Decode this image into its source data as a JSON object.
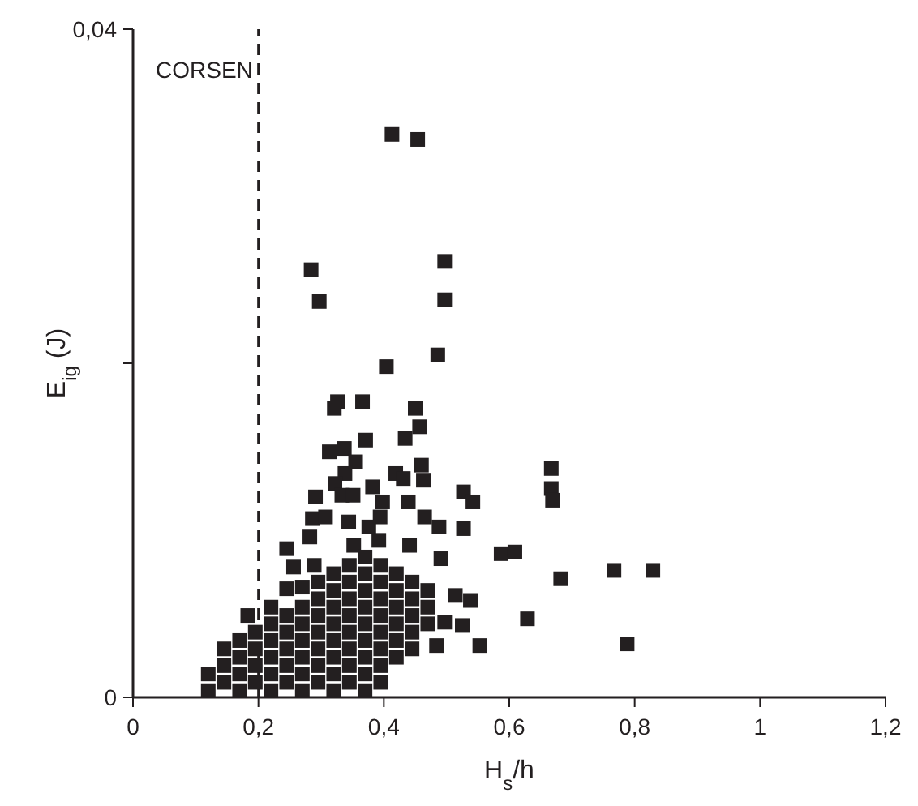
{
  "chart_data": {
    "type": "scatter",
    "xlabel": "H$_{s}$/h",
    "ylabel": "E$_{ig}$ (J)",
    "annotations": [
      "CORSEN"
    ],
    "xlim": [
      0,
      1.2
    ],
    "ylim": [
      0,
      0.04
    ],
    "xticks": [
      {
        "value": 0,
        "label": "0"
      },
      {
        "value": 0.2,
        "label": "0,2"
      },
      {
        "value": 0.4,
        "label": "0,4"
      },
      {
        "value": 0.6,
        "label": "0,6"
      },
      {
        "value": 0.8,
        "label": "0,8"
      },
      {
        "value": 1,
        "label": "1"
      },
      {
        "value": 1.2,
        "label": "1,2"
      }
    ],
    "yticks": [
      {
        "value": 0,
        "label": "0"
      },
      {
        "value": 0.02,
        "label": null
      },
      {
        "value": 0.04,
        "label": "0,04"
      }
    ],
    "grid": false,
    "marker": "square",
    "ref_lines": [
      {
        "axis": "x",
        "value": 0.2,
        "line_style": "dashed",
        "color": "#231f20"
      }
    ],
    "series": [
      {
        "color": "#231f20",
        "x": [
          0.413,
          0.454,
          0.284,
          0.297,
          0.497,
          0.497,
          0.486,
          0.404,
          0.326,
          0.321,
          0.366,
          0.45,
          0.457,
          0.434,
          0.371,
          0.313,
          0.337,
          0.355,
          0.338,
          0.322,
          0.46,
          0.419,
          0.431,
          0.463,
          0.382,
          0.291,
          0.333,
          0.351,
          0.527,
          0.542,
          0.398,
          0.439,
          0.286,
          0.307,
          0.344,
          0.394,
          0.465,
          0.667,
          0.667,
          0.669,
          0.527,
          0.587,
          0.609,
          0.682,
          0.767,
          0.829,
          0.629,
          0.788,
          0.488,
          0.282,
          0.376,
          0.392,
          0.441,
          0.245,
          0.256,
          0.289,
          0.491,
          0.352,
          0.245,
          0.183,
          0.553,
          0.525,
          0.538,
          0.514,
          0.497,
          0.445,
          0.484
        ],
        "values": [
          0.0337,
          0.0334,
          0.0256,
          0.0237,
          0.0261,
          0.0238,
          0.0205,
          0.0198,
          0.0177,
          0.0173,
          0.0177,
          0.0173,
          0.0162,
          0.0155,
          0.0154,
          0.0147,
          0.0149,
          0.0141,
          0.0134,
          0.0128,
          0.0139,
          0.0134,
          0.0131,
          0.013,
          0.0126,
          0.012,
          0.0121,
          0.0121,
          0.0123,
          0.0117,
          0.0117,
          0.0117,
          0.0107,
          0.0108,
          0.0105,
          0.0108,
          0.0108,
          0.0137,
          0.0125,
          0.0118,
          0.0101,
          0.0086,
          0.0087,
          0.0071,
          0.0076,
          0.0076,
          0.0047,
          0.0032,
          0.0102,
          0.0096,
          0.0102,
          0.0094,
          0.0091,
          0.0089,
          0.0078,
          0.0079,
          0.0083,
          0.0091,
          0.0065,
          0.0049,
          0.0031,
          0.0043,
          0.0058,
          0.0061,
          0.0045,
          0.0029,
          0.0031
        ]
      },
      {
        "color": "#231f20",
        "x": [
          0.12,
          0.12,
          0.145,
          0.145,
          0.145,
          0.17,
          0.17,
          0.17,
          0.17,
          0.195,
          0.195,
          0.195,
          0.195,
          0.22,
          0.22,
          0.22,
          0.22,
          0.22,
          0.22,
          0.245,
          0.245,
          0.245,
          0.245,
          0.245,
          0.27,
          0.27,
          0.27,
          0.27,
          0.27,
          0.27,
          0.27,
          0.295,
          0.295,
          0.295,
          0.295,
          0.295,
          0.295,
          0.295,
          0.32,
          0.32,
          0.32,
          0.32,
          0.32,
          0.32,
          0.32,
          0.32,
          0.345,
          0.345,
          0.345,
          0.345,
          0.345,
          0.345,
          0.345,
          0.345,
          0.37,
          0.37,
          0.37,
          0.37,
          0.37,
          0.37,
          0.37,
          0.37,
          0.37,
          0.395,
          0.395,
          0.395,
          0.395,
          0.395,
          0.395,
          0.395,
          0.395,
          0.42,
          0.42,
          0.42,
          0.42,
          0.42,
          0.42,
          0.445,
          0.445,
          0.445,
          0.445,
          0.47,
          0.47,
          0.47
        ],
        "values": [
          0.0004,
          0.0014,
          0.0009,
          0.0019,
          0.0029,
          0.0004,
          0.0014,
          0.0024,
          0.0034,
          0.0009,
          0.0019,
          0.0029,
          0.0039,
          0.0004,
          0.0014,
          0.0024,
          0.0034,
          0.0044,
          0.0054,
          0.0009,
          0.0019,
          0.0029,
          0.0039,
          0.0049,
          0.0004,
          0.0014,
          0.0024,
          0.0034,
          0.0044,
          0.0054,
          0.0066,
          0.0009,
          0.0019,
          0.0029,
          0.0039,
          0.0049,
          0.0059,
          0.0069,
          0.0004,
          0.0014,
          0.0024,
          0.0034,
          0.0044,
          0.0054,
          0.0064,
          0.0074,
          0.0009,
          0.0019,
          0.0029,
          0.0039,
          0.0049,
          0.0059,
          0.0069,
          0.0079,
          0.0004,
          0.0014,
          0.0024,
          0.0034,
          0.0044,
          0.0054,
          0.0064,
          0.0074,
          0.0084,
          0.0009,
          0.0019,
          0.0029,
          0.0039,
          0.0049,
          0.0059,
          0.0069,
          0.0079,
          0.0024,
          0.0034,
          0.0044,
          0.0054,
          0.0064,
          0.0074,
          0.0039,
          0.0049,
          0.0059,
          0.0069,
          0.0044,
          0.0054,
          0.0064
        ]
      }
    ]
  }
}
